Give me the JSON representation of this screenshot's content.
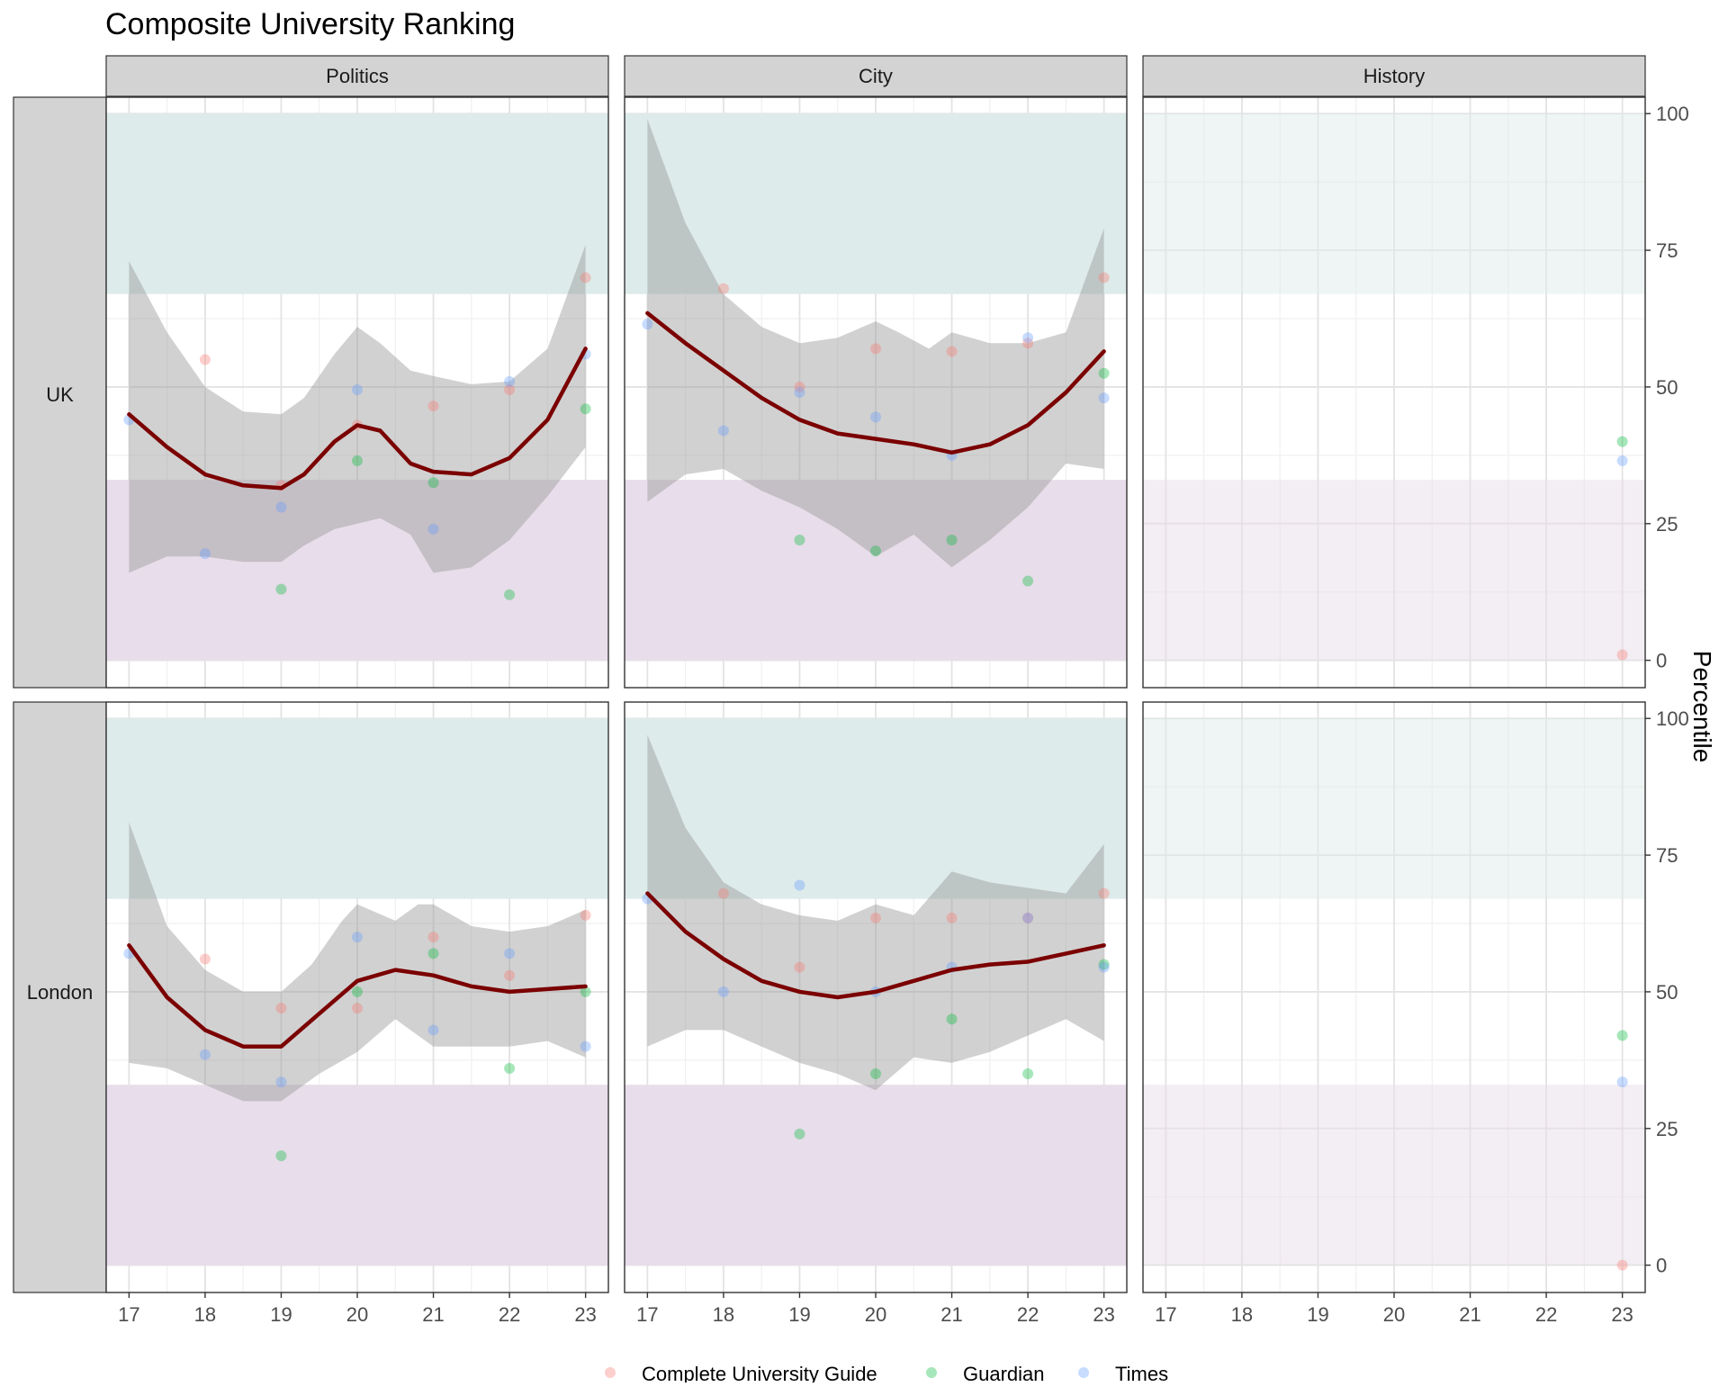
{
  "chart_data": {
    "type": "scatter",
    "title": "Composite University Ranking",
    "xlabel": "",
    "ylabel": "Percentile",
    "x_ticks": [
      17,
      18,
      19,
      20,
      21,
      22,
      23
    ],
    "y_ticks": [
      0,
      25,
      50,
      75,
      100
    ],
    "xlim": [
      16.7,
      23.3
    ],
    "ylim": [
      -5,
      103
    ],
    "columns": [
      "Politics",
      "City",
      "History"
    ],
    "rows": [
      "UK",
      "London"
    ],
    "legend_position": "bottom",
    "colors": {
      "Complete University Guide": "#F8766D",
      "Guardian": "#00BA38",
      "Times": "#619CFF",
      "smooth_line": "#7B0000",
      "ribbon": "#9a9a9a",
      "top_band": "#DDEBEA",
      "bottom_band": "#E8DDEA",
      "strip_bg": "#D3D3D3"
    },
    "bands": {
      "top": [
        67,
        100
      ],
      "bottom": [
        0,
        33
      ]
    },
    "series": [
      {
        "name": "Complete University Guide"
      },
      {
        "name": "Guardian"
      },
      {
        "name": "Times"
      }
    ],
    "panels": [
      {
        "row": "UK",
        "column": "Politics",
        "points": {
          "Complete University Guide": [
            [
              18,
              55
            ],
            [
              19,
              32
            ],
            [
              20,
              43
            ],
            [
              21,
              46.5
            ],
            [
              22,
              49.5
            ],
            [
              23,
              70
            ]
          ],
          "Guardian": [
            [
              19,
              13
            ],
            [
              20,
              36.5
            ],
            [
              21,
              32.5
            ],
            [
              22,
              12
            ],
            [
              23,
              46
            ]
          ],
          "Times": [
            [
              17,
              44
            ],
            [
              18,
              19.5
            ],
            [
              19,
              28
            ],
            [
              20,
              49.5
            ],
            [
              21,
              24
            ],
            [
              22,
              51
            ],
            [
              23,
              56
            ]
          ]
        },
        "smooth": [
          [
            17,
            45
          ],
          [
            17.5,
            39
          ],
          [
            18,
            34
          ],
          [
            18.5,
            32
          ],
          [
            19,
            31.5
          ],
          [
            19.3,
            34
          ],
          [
            19.7,
            40
          ],
          [
            20,
            43
          ],
          [
            20.3,
            42
          ],
          [
            20.7,
            36
          ],
          [
            21,
            34.5
          ],
          [
            21.5,
            34
          ],
          [
            22,
            37
          ],
          [
            22.5,
            44
          ],
          [
            23,
            57
          ]
        ],
        "ribbon_upper": [
          [
            17,
            73
          ],
          [
            17.5,
            60
          ],
          [
            18,
            50
          ],
          [
            18.5,
            45.5
          ],
          [
            19,
            45
          ],
          [
            19.3,
            48
          ],
          [
            19.7,
            56
          ],
          [
            20,
            61
          ],
          [
            20.3,
            58
          ],
          [
            20.7,
            53
          ],
          [
            21,
            52
          ],
          [
            21.5,
            50.5
          ],
          [
            22,
            51
          ],
          [
            22.5,
            57
          ],
          [
            23,
            76
          ]
        ],
        "ribbon_lower": [
          [
            17,
            16
          ],
          [
            17.5,
            19
          ],
          [
            18,
            19
          ],
          [
            18.5,
            18
          ],
          [
            19,
            18
          ],
          [
            19.3,
            21
          ],
          [
            19.7,
            24
          ],
          [
            20,
            25
          ],
          [
            20.3,
            26
          ],
          [
            20.7,
            23
          ],
          [
            21,
            16
          ],
          [
            21.5,
            17
          ],
          [
            22,
            22
          ],
          [
            22.5,
            30
          ],
          [
            23,
            39
          ]
        ]
      },
      {
        "row": "UK",
        "column": "City",
        "points": {
          "Complete University Guide": [
            [
              18,
              68
            ],
            [
              19,
              50
            ],
            [
              20,
              57
            ],
            [
              21,
              56.5
            ],
            [
              22,
              58
            ],
            [
              23,
              70
            ]
          ],
          "Guardian": [
            [
              19,
              22
            ],
            [
              20,
              20
            ],
            [
              21,
              22
            ],
            [
              22,
              14.5
            ],
            [
              23,
              52.5
            ]
          ],
          "Times": [
            [
              17,
              61.5
            ],
            [
              18,
              42
            ],
            [
              19,
              49
            ],
            [
              20,
              44.5
            ],
            [
              21,
              37.5
            ],
            [
              22,
              59
            ],
            [
              23,
              48
            ]
          ]
        },
        "smooth": [
          [
            17,
            63.5
          ],
          [
            17.5,
            58
          ],
          [
            18,
            53
          ],
          [
            18.5,
            48
          ],
          [
            19,
            44
          ],
          [
            19.5,
            41.5
          ],
          [
            20,
            40.5
          ],
          [
            20.5,
            39.5
          ],
          [
            21,
            38
          ],
          [
            21.5,
            39.5
          ],
          [
            22,
            43
          ],
          [
            22.5,
            49
          ],
          [
            23,
            56.5
          ]
        ],
        "ribbon_upper": [
          [
            17,
            99
          ],
          [
            17.5,
            80
          ],
          [
            18,
            67
          ],
          [
            18.5,
            61
          ],
          [
            19,
            58
          ],
          [
            19.5,
            59
          ],
          [
            20,
            62
          ],
          [
            20.3,
            60
          ],
          [
            20.7,
            57
          ],
          [
            21,
            60
          ],
          [
            21.5,
            58
          ],
          [
            22,
            58
          ],
          [
            22.5,
            60
          ],
          [
            23,
            79
          ]
        ],
        "ribbon_lower": [
          [
            17,
            29
          ],
          [
            17.5,
            34
          ],
          [
            18,
            35
          ],
          [
            18.5,
            31
          ],
          [
            19,
            28
          ],
          [
            19.5,
            24
          ],
          [
            20,
            19
          ],
          [
            20.5,
            23
          ],
          [
            21,
            17
          ],
          [
            21.5,
            22
          ],
          [
            22,
            28
          ],
          [
            22.5,
            36
          ],
          [
            23,
            35
          ]
        ]
      },
      {
        "row": "UK",
        "column": "History",
        "points": {
          "Complete University Guide": [
            [
              23,
              1
            ]
          ],
          "Guardian": [
            [
              23,
              40
            ]
          ],
          "Times": [
            [
              23,
              36.5
            ]
          ]
        },
        "smooth": [],
        "ribbon_upper": [],
        "ribbon_lower": []
      },
      {
        "row": "London",
        "column": "Politics",
        "points": {
          "Complete University Guide": [
            [
              18,
              56
            ],
            [
              19,
              47
            ],
            [
              20,
              47
            ],
            [
              21,
              60
            ],
            [
              22,
              53
            ],
            [
              23,
              64
            ]
          ],
          "Guardian": [
            [
              19,
              20
            ],
            [
              20,
              50
            ],
            [
              21,
              57
            ],
            [
              22,
              36
            ],
            [
              23,
              50
            ]
          ],
          "Times": [
            [
              17,
              57
            ],
            [
              18,
              38.5
            ],
            [
              19,
              33.5
            ],
            [
              20,
              60
            ],
            [
              21,
              43
            ],
            [
              22,
              57
            ],
            [
              23,
              40
            ]
          ]
        },
        "smooth": [
          [
            17,
            58.5
          ],
          [
            17.5,
            49
          ],
          [
            18,
            43
          ],
          [
            18.5,
            40
          ],
          [
            19,
            40
          ],
          [
            19.5,
            46
          ],
          [
            20,
            52
          ],
          [
            20.5,
            54
          ],
          [
            21,
            53
          ],
          [
            21.5,
            51
          ],
          [
            22,
            50
          ],
          [
            22.5,
            50.5
          ],
          [
            23,
            51
          ]
        ],
        "ribbon_upper": [
          [
            17,
            81
          ],
          [
            17.5,
            62
          ],
          [
            18,
            54
          ],
          [
            18.5,
            50
          ],
          [
            19,
            50
          ],
          [
            19.4,
            55
          ],
          [
            19.8,
            63
          ],
          [
            20,
            66
          ],
          [
            20.5,
            63
          ],
          [
            20.8,
            66
          ],
          [
            21,
            66
          ],
          [
            21.5,
            62
          ],
          [
            22,
            61
          ],
          [
            22.5,
            62
          ],
          [
            23,
            65
          ]
        ],
        "ribbon_lower": [
          [
            17,
            37
          ],
          [
            17.5,
            36
          ],
          [
            18,
            33
          ],
          [
            18.5,
            30
          ],
          [
            19,
            30
          ],
          [
            19.5,
            35
          ],
          [
            20,
            39
          ],
          [
            20.5,
            45
          ],
          [
            21,
            40
          ],
          [
            21.5,
            40
          ],
          [
            22,
            40
          ],
          [
            22.5,
            41
          ],
          [
            23,
            38
          ]
        ]
      },
      {
        "row": "London",
        "column": "City",
        "points": {
          "Complete University Guide": [
            [
              18,
              68
            ],
            [
              19,
              54.5
            ],
            [
              20,
              63.5
            ],
            [
              21,
              63.5
            ],
            [
              22,
              63.5
            ],
            [
              23,
              68
            ]
          ],
          "Guardian": [
            [
              19,
              24
            ],
            [
              20,
              35
            ],
            [
              21,
              45
            ],
            [
              22,
              35
            ],
            [
              23,
              55
            ]
          ],
          "Times": [
            [
              17,
              67
            ],
            [
              18,
              50
            ],
            [
              19,
              69.5
            ],
            [
              20,
              50
            ],
            [
              21,
              54.5
            ],
            [
              22,
              63.5
            ],
            [
              23,
              54.5
            ]
          ]
        },
        "smooth": [
          [
            17,
            68
          ],
          [
            17.5,
            61
          ],
          [
            18,
            56
          ],
          [
            18.5,
            52
          ],
          [
            19,
            50
          ],
          [
            19.5,
            49
          ],
          [
            20,
            50
          ],
          [
            20.5,
            52
          ],
          [
            21,
            54
          ],
          [
            21.5,
            55
          ],
          [
            22,
            55.5
          ],
          [
            22.5,
            57
          ],
          [
            23,
            58.5
          ]
        ],
        "ribbon_upper": [
          [
            17,
            97
          ],
          [
            17.5,
            80
          ],
          [
            18,
            70
          ],
          [
            18.5,
            66
          ],
          [
            19,
            64
          ],
          [
            19.5,
            63
          ],
          [
            20,
            66
          ],
          [
            20.5,
            64
          ],
          [
            21,
            72
          ],
          [
            21.5,
            70
          ],
          [
            22,
            69
          ],
          [
            22.5,
            68
          ],
          [
            23,
            77
          ]
        ],
        "ribbon_lower": [
          [
            17,
            40
          ],
          [
            17.5,
            43
          ],
          [
            18,
            43
          ],
          [
            18.5,
            40
          ],
          [
            19,
            37
          ],
          [
            19.5,
            35
          ],
          [
            20,
            32
          ],
          [
            20.5,
            38
          ],
          [
            21,
            37
          ],
          [
            21.5,
            39
          ],
          [
            22,
            42
          ],
          [
            22.5,
            45
          ],
          [
            23,
            41
          ]
        ]
      },
      {
        "row": "London",
        "column": "History",
        "points": {
          "Complete University Guide": [
            [
              23,
              0
            ]
          ],
          "Guardian": [
            [
              23,
              42
            ]
          ],
          "Times": [
            [
              23,
              33.5
            ]
          ]
        },
        "smooth": [],
        "ribbon_upper": [],
        "ribbon_lower": []
      }
    ]
  }
}
